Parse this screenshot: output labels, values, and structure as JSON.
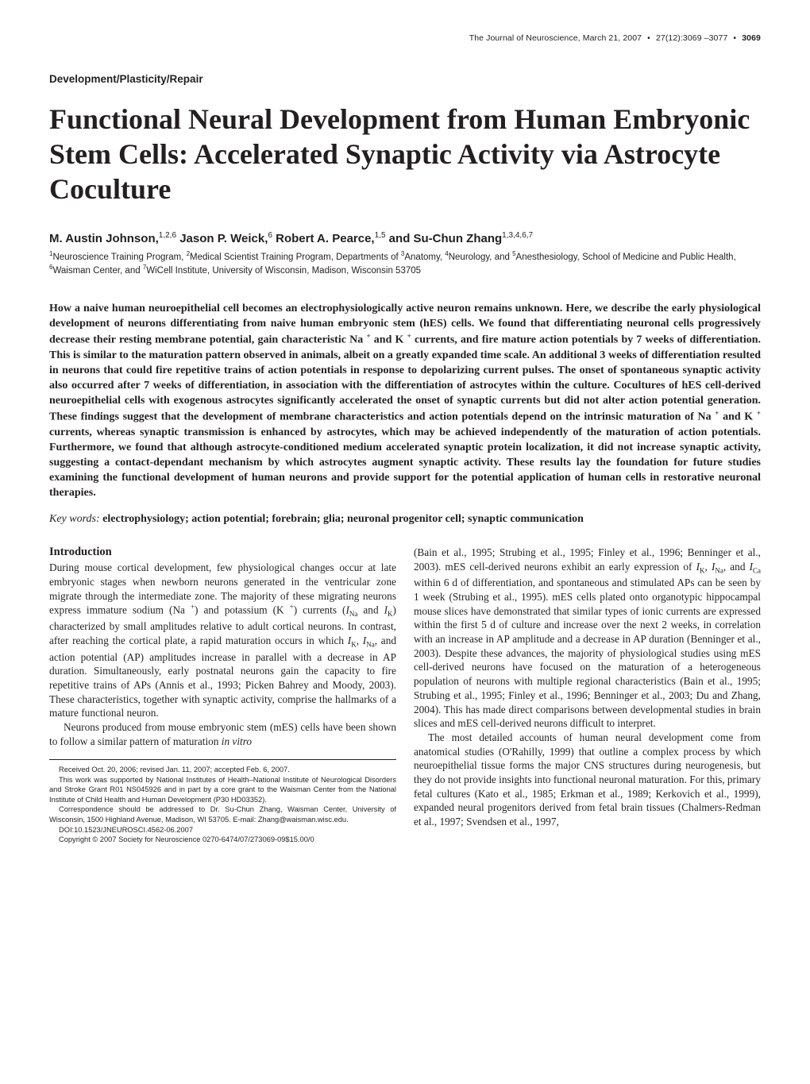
{
  "running_head": {
    "journal": "The Journal of Neuroscience,",
    "date": "March 21, 2007",
    "issue": "27(12):3069 –3077",
    "pagenum": "3069"
  },
  "section_label": "Development/Plasticity/Repair",
  "title": "Functional Neural Development from Human Embryonic Stem Cells: Accelerated Synaptic Activity via Astrocyte Coculture",
  "authors_html": "M. Austin Johnson,<sup>1,2,6</sup> Jason P. Weick,<sup>6</sup> Robert A. Pearce,<sup>1,5</sup> and Su-Chun Zhang<sup>1,3,4,6,7</sup>",
  "affiliations_html": "<sup>1</sup>Neuroscience Training Program, <sup>2</sup>Medical Scientist Training Program, Departments of <sup>3</sup>Anatomy, <sup>4</sup>Neurology, and <sup>5</sup>Anesthesiology, School of Medicine and Public Health, <sup>6</sup>Waisman Center, and <sup>7</sup>WiCell Institute, University of Wisconsin, Madison, Wisconsin 53705",
  "abstract_html": "How a naive human neuroepithelial cell becomes an electrophysiologically active neuron remains unknown. Here, we describe the early physiological development of neurons differentiating from naive human embryonic stem (hES) cells. We found that differentiating neuronal cells progressively decrease their resting membrane potential, gain characteristic Na <sup>+</sup> and K <sup>+</sup> currents, and fire mature action potentials by 7 weeks of differentiation. This is similar to the maturation pattern observed in animals, albeit on a greatly expanded time scale. An additional 3 weeks of differentiation resulted in neurons that could fire repetitive trains of action potentials in response to depolarizing current pulses. The onset of spontaneous synaptic activity also occurred after 7 weeks of differentiation, in association with the differentiation of astrocytes within the culture. Cocultures of hES cell-derived neuroepithelial cells with exogenous astrocytes significantly accelerated the onset of synaptic currents but did not alter action potential generation. These findings suggest that the development of membrane characteristics and action potentials depend on the intrinsic maturation of Na <sup>+</sup> and K <sup>+</sup> currents, whereas synaptic transmission is enhanced by astrocytes, which may be achieved independently of the maturation of action potentials. Furthermore, we found that although astrocyte-conditioned medium accelerated synaptic protein localization, it did not increase synaptic activity, suggesting a contact-dependant mechanism by which astrocytes augment synaptic activity. These results lay the foundation for future studies examining the functional development of human neurons and provide support for the potential application of human cells in restorative neuronal therapies.",
  "keywords": {
    "label": "Key words: ",
    "text": "electrophysiology; action potential; forebrain; glia; neuronal progenitor cell; synaptic communication"
  },
  "introduction": {
    "heading": "Introduction",
    "left_p1_html": "During mouse cortical development, few physiological changes occur at late embryonic stages when newborn neurons generated in the ventricular zone migrate through the intermediate zone. The majority of these migrating neurons express immature sodium (Na <sup>+</sup>) and potassium (K <sup>+</sup>) currents (<em>I</em><sub>Na</sub> and <em>I</em><sub>K</sub>) characterized by small amplitudes relative to adult cortical neurons. In contrast, after reaching the cortical plate, a rapid maturation occurs in which <em>I</em><sub>K</sub>, <em>I</em><sub>Na</sub>, and action potential (AP) amplitudes increase in parallel with a decrease in AP duration. Simultaneously, early postnatal neurons gain the capacity to fire repetitive trains of APs (Annis et al., 1993; Picken Bahrey and Moody, 2003). These characteristics, together with synaptic activity, comprise the hallmarks of a mature functional neuron.",
    "left_p2_html": "Neurons produced from mouse embryonic stem (mES) cells have been shown to follow a similar pattern of maturation <em>in vitro</em>",
    "right_p1_html": "(Bain et al., 1995; Strubing et al., 1995; Finley et al., 1996; Benninger et al., 2003). mES cell-derived neurons exhibit an early expression of <em>I</em><sub>K</sub>, <em>I</em><sub>Na</sub>, and <em>I</em><sub>Ca</sub> within 6 d of differentiation, and spontaneous and stimulated APs can be seen by 1 week (Strubing et al., 1995). mES cells plated onto organotypic hippocampal mouse slices have demonstrated that similar types of ionic currents are expressed within the first 5 d of culture and increase over the next 2 weeks, in correlation with an increase in AP amplitude and a decrease in AP duration (Benninger et al., 2003). Despite these advances, the majority of physiological studies using mES cell-derived neurons have focused on the maturation of a heterogeneous population of neurons with multiple regional characteristics (Bain et al., 1995; Strubing et al., 1995; Finley et al., 1996; Benninger et al., 2003; Du and Zhang, 2004). This has made direct comparisons between developmental studies in brain slices and mES cell-derived neurons difficult to interpret.",
    "right_p2_html": "The most detailed accounts of human neural development come from anatomical studies (O'Rahilly, 1999) that outline a complex process by which neuroepithelial tissue forms the major CNS structures during neurogenesis, but they do not provide insights into functional neuronal maturation. For this, primary fetal cultures (Kato et al., 1985; Erkman et al., 1989; Kerkovich et al., 1999), expanded neural progenitors derived from fetal brain tissues (Chalmers-Redman et al., 1997; Svendsen et al., 1997,"
  },
  "footnotes": {
    "received": "Received Oct. 20, 2006; revised Jan. 11, 2007; accepted Feb. 6, 2007.",
    "support": "This work was supported by National Institutes of Health–National Institute of Neurological Disorders and Stroke Grant R01 NS045926 and in part by a core grant to the Waisman Center from the National Institute of Child Health and Human Development (P30 HD03352).",
    "correspondence": "Correspondence should be addressed to Dr. Su-Chun Zhang, Waisman Center, University of Wisconsin, 1500 Highland Avenue, Madison, WI 53705. E-mail: Zhang@waisman.wisc.edu.",
    "doi": "DOI:10.1523/JNEUROSCI.4562-06.2007",
    "copyright": "Copyright © 2007 Society for Neuroscience    0270-6474/07/273069-09$15.00/0"
  }
}
